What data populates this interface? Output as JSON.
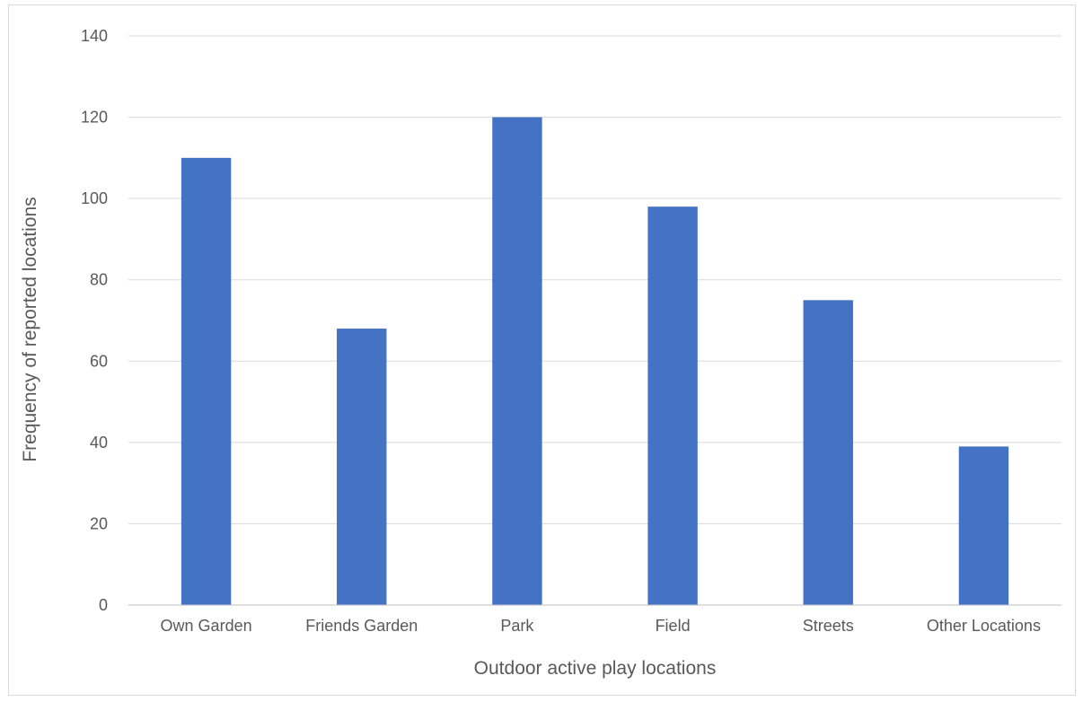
{
  "chart_data": {
    "type": "bar",
    "title": "",
    "xlabel": "Outdoor active play locations",
    "ylabel": "Frequency of reported locations",
    "categories": [
      "Own Garden",
      "Friends Garden",
      "Park",
      "Field",
      "Streets",
      "Other Locations"
    ],
    "values": [
      110,
      68,
      120,
      98,
      75,
      39
    ],
    "ylim": [
      0,
      140
    ],
    "yticks": [
      "0",
      "20",
      "40",
      "60",
      "80",
      "100",
      "120",
      "140"
    ],
    "grid": true,
    "legend": "none",
    "colors": {
      "bar": "#4472C4",
      "grid": "#d9d9d9",
      "axis": "#bfbfbf",
      "text": "#595959"
    }
  }
}
